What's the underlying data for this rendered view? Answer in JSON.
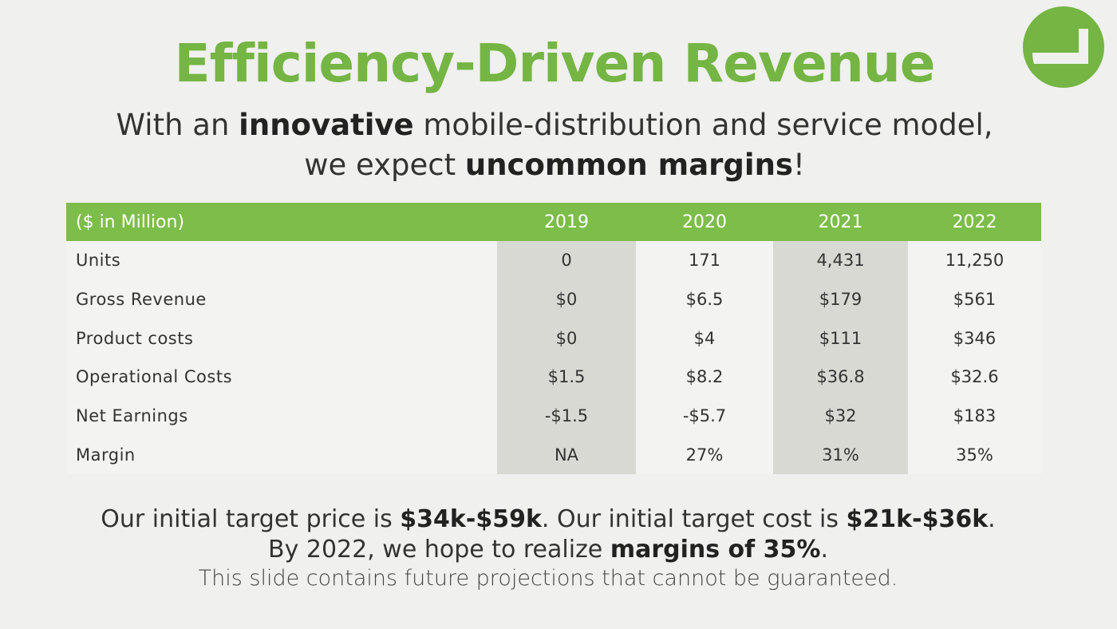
{
  "title": "Efficiency-Driven Revenue",
  "subtitle": {
    "l1_a": "With an ",
    "l1_b": "innovative",
    "l1_c": " mobile-distribution and service model,",
    "l2_a": "we expect ",
    "l2_b": "uncommon margins",
    "l2_c": "!"
  },
  "table": {
    "header_label": "($ in Million)",
    "years": [
      "2019",
      "2020",
      "2021",
      "2022"
    ],
    "rows": [
      {
        "label": "Units",
        "values": [
          "0",
          "171",
          "4,431",
          "11,250"
        ]
      },
      {
        "label": "Gross Revenue",
        "values": [
          "$0",
          "$6.5",
          "$179",
          "$561"
        ]
      },
      {
        "label": "Product costs",
        "values": [
          "$0",
          "$4",
          "$111",
          "$346"
        ]
      },
      {
        "label": "Operational Costs",
        "values": [
          "$1.5",
          "$8.2",
          "$36.8",
          "$32.6"
        ]
      },
      {
        "label": "Net Earnings",
        "values": [
          "-$1.5",
          "-$5.7",
          "$32",
          "$183"
        ]
      },
      {
        "label": "Margin",
        "values": [
          "NA",
          "27%",
          "31%",
          "35%"
        ]
      }
    ]
  },
  "footer": {
    "l1_a": "Our initial target price is ",
    "l1_b": "$34k-$59k",
    "l1_c": ". Our initial target cost is ",
    "l1_d": "$21k-$36k",
    "l1_e": ".",
    "l2_a": "By 2022, we hope to realize ",
    "l2_b": "margins of 35%",
    "l2_c": ".",
    "l3": "This slide contains future projections that cannot be guaranteed."
  },
  "colors": {
    "accent": "#74b544",
    "header_bg": "#7dbd4a",
    "shade": "#d9d9d4"
  },
  "logo_icon": "company-logo-icon"
}
